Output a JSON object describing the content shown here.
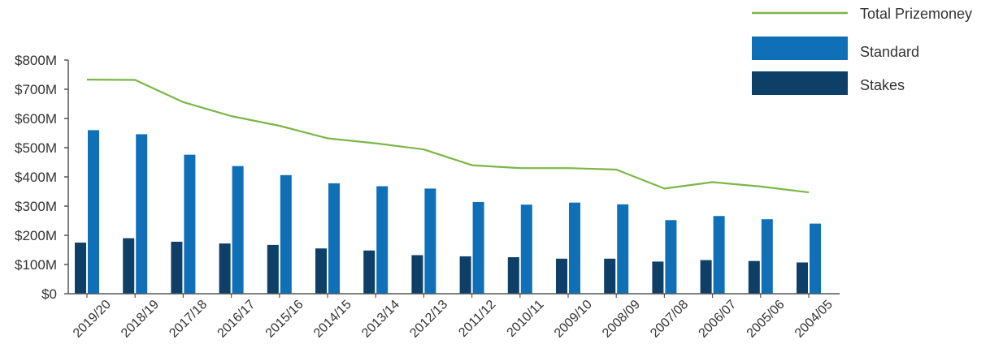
{
  "chart_data": {
    "type": "bar",
    "title": "",
    "xlabel": "",
    "ylabel": "",
    "ylim": [
      0,
      800
    ],
    "y_ticks": [
      0,
      100,
      200,
      300,
      400,
      500,
      600,
      700,
      800
    ],
    "y_tick_labels": [
      "$0",
      "$100M",
      "$200M",
      "$300M",
      "$400M",
      "$500M",
      "$600M",
      "$700M",
      "$800M"
    ],
    "categories": [
      "2019/20",
      "2018/19",
      "2017/18",
      "2016/17",
      "2015/16",
      "2014/15",
      "2013/14",
      "2012/13",
      "2011/12",
      "2010/11",
      "2009/10",
      "2008/09",
      "2007/08",
      "2006/07",
      "2005/06",
      "2004/05"
    ],
    "legend_position": "top-right",
    "series": [
      {
        "name": "Stakes",
        "type": "bar",
        "color": "#0d3f67",
        "values": [
          175,
          190,
          178,
          172,
          167,
          155,
          148,
          132,
          128,
          125,
          120,
          120,
          110,
          115,
          112,
          107
        ]
      },
      {
        "name": "Standard",
        "type": "bar",
        "color": "#0f70b8",
        "values": [
          560,
          546,
          476,
          437,
          406,
          378,
          368,
          360,
          314,
          305,
          312,
          306,
          252,
          266,
          255,
          240
        ]
      },
      {
        "name": "Total Prizemoney",
        "type": "line",
        "color": "#7ab648",
        "values": [
          733,
          732,
          656,
          608,
          575,
          532,
          515,
          494,
          440,
          430,
          430,
          425,
          360,
          382,
          367,
          347
        ]
      }
    ],
    "legend": [
      "Total Prizemoney",
      "Standard",
      "Stakes"
    ]
  }
}
